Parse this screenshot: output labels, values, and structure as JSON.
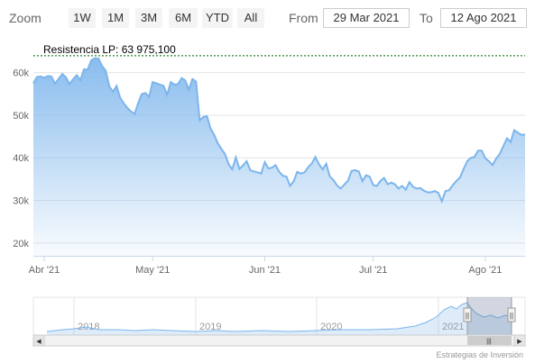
{
  "toolbar": {
    "zoom_label": "Zoom",
    "buttons": [
      "1W",
      "1M",
      "3M",
      "6M",
      "YTD",
      "All"
    ],
    "from_label": "From",
    "from_value": "29 Mar 2021",
    "to_label": "To",
    "to_value": "12 Ago 2021"
  },
  "chart_data": {
    "type": "area",
    "title": "",
    "xlabel": "",
    "ylabel": "",
    "ylim": [
      17000,
      65000
    ],
    "yticks": [
      {
        "value": 20000,
        "label": "20k"
      },
      {
        "value": 30000,
        "label": "30k"
      },
      {
        "value": 40000,
        "label": "40k"
      },
      {
        "value": 50000,
        "label": "50k"
      },
      {
        "value": 60000,
        "label": "60k"
      }
    ],
    "xticks": [
      {
        "date": "2021-04-01",
        "label": "Abr '21"
      },
      {
        "date": "2021-05-01",
        "label": "May '21"
      },
      {
        "date": "2021-06-01",
        "label": "Jun '21"
      },
      {
        "date": "2021-07-01",
        "label": "Jul '21"
      },
      {
        "date": "2021-08-01",
        "label": "Ago '21"
      }
    ],
    "x_range": [
      "2021-03-29",
      "2021-08-12"
    ],
    "grid": true,
    "annotation": {
      "label": "Resistencia LP: 63 975,100",
      "value": 63975.1
    },
    "series": [
      {
        "color": "#7cb5ec",
        "points": [
          [
            "2021-03-29",
            57500
          ],
          [
            "2021-03-30",
            59000
          ],
          [
            "2021-03-31",
            59100
          ],
          [
            "2021-04-01",
            58800
          ],
          [
            "2021-04-02",
            59200
          ],
          [
            "2021-04-03",
            59100
          ],
          [
            "2021-04-04",
            57400
          ],
          [
            "2021-04-05",
            58600
          ],
          [
            "2021-04-06",
            59700
          ],
          [
            "2021-04-07",
            58900
          ],
          [
            "2021-04-08",
            57300
          ],
          [
            "2021-04-09",
            58500
          ],
          [
            "2021-04-10",
            59400
          ],
          [
            "2021-04-11",
            58200
          ],
          [
            "2021-04-12",
            60800
          ],
          [
            "2021-04-13",
            60700
          ],
          [
            "2021-04-14",
            62900
          ],
          [
            "2021-04-15",
            63400
          ],
          [
            "2021-04-16",
            63300
          ],
          [
            "2021-04-17",
            61600
          ],
          [
            "2021-04-18",
            60500
          ],
          [
            "2021-04-19",
            56800
          ],
          [
            "2021-04-20",
            55500
          ],
          [
            "2021-04-21",
            56900
          ],
          [
            "2021-04-22",
            54100
          ],
          [
            "2021-04-23",
            52800
          ],
          [
            "2021-04-24",
            51700
          ],
          [
            "2021-04-25",
            50900
          ],
          [
            "2021-04-26",
            50300
          ],
          [
            "2021-04-27",
            52900
          ],
          [
            "2021-04-28",
            55000
          ],
          [
            "2021-04-29",
            55200
          ],
          [
            "2021-04-30",
            54300
          ],
          [
            "2021-05-01",
            57800
          ],
          [
            "2021-05-02",
            57500
          ],
          [
            "2021-05-03",
            57200
          ],
          [
            "2021-05-04",
            56900
          ],
          [
            "2021-05-05",
            54800
          ],
          [
            "2021-05-06",
            57800
          ],
          [
            "2021-05-07",
            57200
          ],
          [
            "2021-05-08",
            57300
          ],
          [
            "2021-05-09",
            58700
          ],
          [
            "2021-05-10",
            58200
          ],
          [
            "2021-05-11",
            56000
          ],
          [
            "2021-05-12",
            58500
          ],
          [
            "2021-05-13",
            57900
          ],
          [
            "2021-05-14",
            48800
          ],
          [
            "2021-05-15",
            49600
          ],
          [
            "2021-05-16",
            49800
          ],
          [
            "2021-05-17",
            46900
          ],
          [
            "2021-05-18",
            45400
          ],
          [
            "2021-05-19",
            43400
          ],
          [
            "2021-05-20",
            42100
          ],
          [
            "2021-05-21",
            40900
          ],
          [
            "2021-05-22",
            38500
          ],
          [
            "2021-05-23",
            37300
          ],
          [
            "2021-05-24",
            40100
          ],
          [
            "2021-05-25",
            37400
          ],
          [
            "2021-05-26",
            38200
          ],
          [
            "2021-05-27",
            39200
          ],
          [
            "2021-05-28",
            37100
          ],
          [
            "2021-05-29",
            36800
          ],
          [
            "2021-05-30",
            36600
          ],
          [
            "2021-05-31",
            36300
          ],
          [
            "2021-06-01",
            39000
          ],
          [
            "2021-06-02",
            37500
          ],
          [
            "2021-06-03",
            37700
          ],
          [
            "2021-06-04",
            38300
          ],
          [
            "2021-06-05",
            36700
          ],
          [
            "2021-06-06",
            35800
          ],
          [
            "2021-06-07",
            35600
          ],
          [
            "2021-06-08",
            33400
          ],
          [
            "2021-06-09",
            34500
          ],
          [
            "2021-06-10",
            36700
          ],
          [
            "2021-06-11",
            36300
          ],
          [
            "2021-06-12",
            36600
          ],
          [
            "2021-06-13",
            37800
          ],
          [
            "2021-06-14",
            38700
          ],
          [
            "2021-06-15",
            40200
          ],
          [
            "2021-06-16",
            38500
          ],
          [
            "2021-06-17",
            37300
          ],
          [
            "2021-06-18",
            38600
          ],
          [
            "2021-06-19",
            35600
          ],
          [
            "2021-06-20",
            34800
          ],
          [
            "2021-06-21",
            33500
          ],
          [
            "2021-06-22",
            32800
          ],
          [
            "2021-06-23",
            33700
          ],
          [
            "2021-06-24",
            34600
          ],
          [
            "2021-06-25",
            36900
          ],
          [
            "2021-06-26",
            37100
          ],
          [
            "2021-06-27",
            36800
          ],
          [
            "2021-06-28",
            34500
          ],
          [
            "2021-06-29",
            35900
          ],
          [
            "2021-06-30",
            35600
          ],
          [
            "2021-07-01",
            33600
          ],
          [
            "2021-07-02",
            33400
          ],
          [
            "2021-07-03",
            34600
          ],
          [
            "2021-07-04",
            35300
          ],
          [
            "2021-07-05",
            33800
          ],
          [
            "2021-07-06",
            34200
          ],
          [
            "2021-07-07",
            33800
          ],
          [
            "2021-07-08",
            32800
          ],
          [
            "2021-07-09",
            33400
          ],
          [
            "2021-07-10",
            32500
          ],
          [
            "2021-07-11",
            34300
          ],
          [
            "2021-07-12",
            33200
          ],
          [
            "2021-07-13",
            32800
          ],
          [
            "2021-07-14",
            32900
          ],
          [
            "2021-07-15",
            32300
          ],
          [
            "2021-07-16",
            31900
          ],
          [
            "2021-07-17",
            31900
          ],
          [
            "2021-07-18",
            32200
          ],
          [
            "2021-07-19",
            31800
          ],
          [
            "2021-07-20",
            29800
          ],
          [
            "2021-07-21",
            32200
          ],
          [
            "2021-07-22",
            32400
          ],
          [
            "2021-07-23",
            33600
          ],
          [
            "2021-07-24",
            34600
          ],
          [
            "2021-07-25",
            35400
          ],
          [
            "2021-07-26",
            37400
          ],
          [
            "2021-07-27",
            39200
          ],
          [
            "2021-07-28",
            40000
          ],
          [
            "2021-07-29",
            40200
          ],
          [
            "2021-07-30",
            41700
          ],
          [
            "2021-07-31",
            41700
          ],
          [
            "2021-08-01",
            39900
          ],
          [
            "2021-08-02",
            39200
          ],
          [
            "2021-08-03",
            38300
          ],
          [
            "2021-08-04",
            39800
          ],
          [
            "2021-08-05",
            40900
          ],
          [
            "2021-08-06",
            42800
          ],
          [
            "2021-08-07",
            44600
          ],
          [
            "2021-08-08",
            43700
          ],
          [
            "2021-08-09",
            46500
          ],
          [
            "2021-08-10",
            45900
          ],
          [
            "2021-08-11",
            45400
          ],
          [
            "2021-08-12",
            45500
          ]
        ]
      }
    ],
    "navigator": {
      "year_labels": [
        "2018",
        "2019",
        "2020",
        "2021"
      ],
      "selected_range": [
        "2021-03-29",
        "2021-08-12"
      ]
    }
  },
  "credits": "Estrategias de Inversión",
  "icons": {
    "scroll_left": "◀",
    "scroll_right": "▶",
    "scroll_grip": "|||",
    "handle_grip": "||"
  }
}
